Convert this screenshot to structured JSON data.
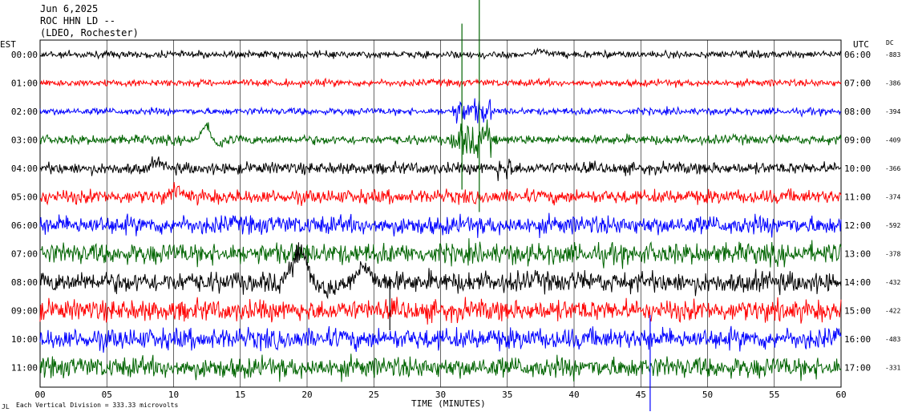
{
  "header": {
    "date": "Jun 6,2025",
    "station": "ROC HHN LD --",
    "network": "(LDEO, Rochester)"
  },
  "left_tz": "EST",
  "right_tz": "UTC",
  "dc_label": "DC",
  "footer_note": "Each Vertical Division =  333.33 microvolts",
  "footer_mark": "JL",
  "colors": {
    "black": "#000000",
    "red": "#ff0000",
    "blue": "#0000ff",
    "green": "#006400"
  },
  "chart_data": {
    "type": "line",
    "xlabel": "TIME (MINUTES)",
    "xlim": [
      0,
      60
    ],
    "x_ticks": [
      "00",
      "05",
      "10",
      "15",
      "20",
      "25",
      "30",
      "35",
      "40",
      "45",
      "50",
      "55",
      "60"
    ],
    "rows": [
      {
        "est": "00:00",
        "utc": "06:00",
        "dc": "-883",
        "color": "black"
      },
      {
        "est": "01:00",
        "utc": "07:00",
        "dc": "-386",
        "color": "red"
      },
      {
        "est": "02:00",
        "utc": "08:00",
        "dc": "-394",
        "color": "blue"
      },
      {
        "est": "03:00",
        "utc": "09:00",
        "dc": "-409",
        "color": "green"
      },
      {
        "est": "04:00",
        "utc": "10:00",
        "dc": "-366",
        "color": "black"
      },
      {
        "est": "05:00",
        "utc": "11:00",
        "dc": "-374",
        "color": "red"
      },
      {
        "est": "06:00",
        "utc": "12:00",
        "dc": "-592",
        "color": "blue"
      },
      {
        "est": "07:00",
        "utc": "13:00",
        "dc": "-378",
        "color": "green"
      },
      {
        "est": "08:00",
        "utc": "14:00",
        "dc": "-432",
        "color": "black"
      },
      {
        "est": "09:00",
        "utc": "15:00",
        "dc": "-422",
        "color": "red"
      },
      {
        "est": "10:00",
        "utc": "16:00",
        "dc": "-483",
        "color": "blue"
      },
      {
        "est": "11:00",
        "utc": "17:00",
        "dc": "-331",
        "color": "green"
      }
    ]
  }
}
